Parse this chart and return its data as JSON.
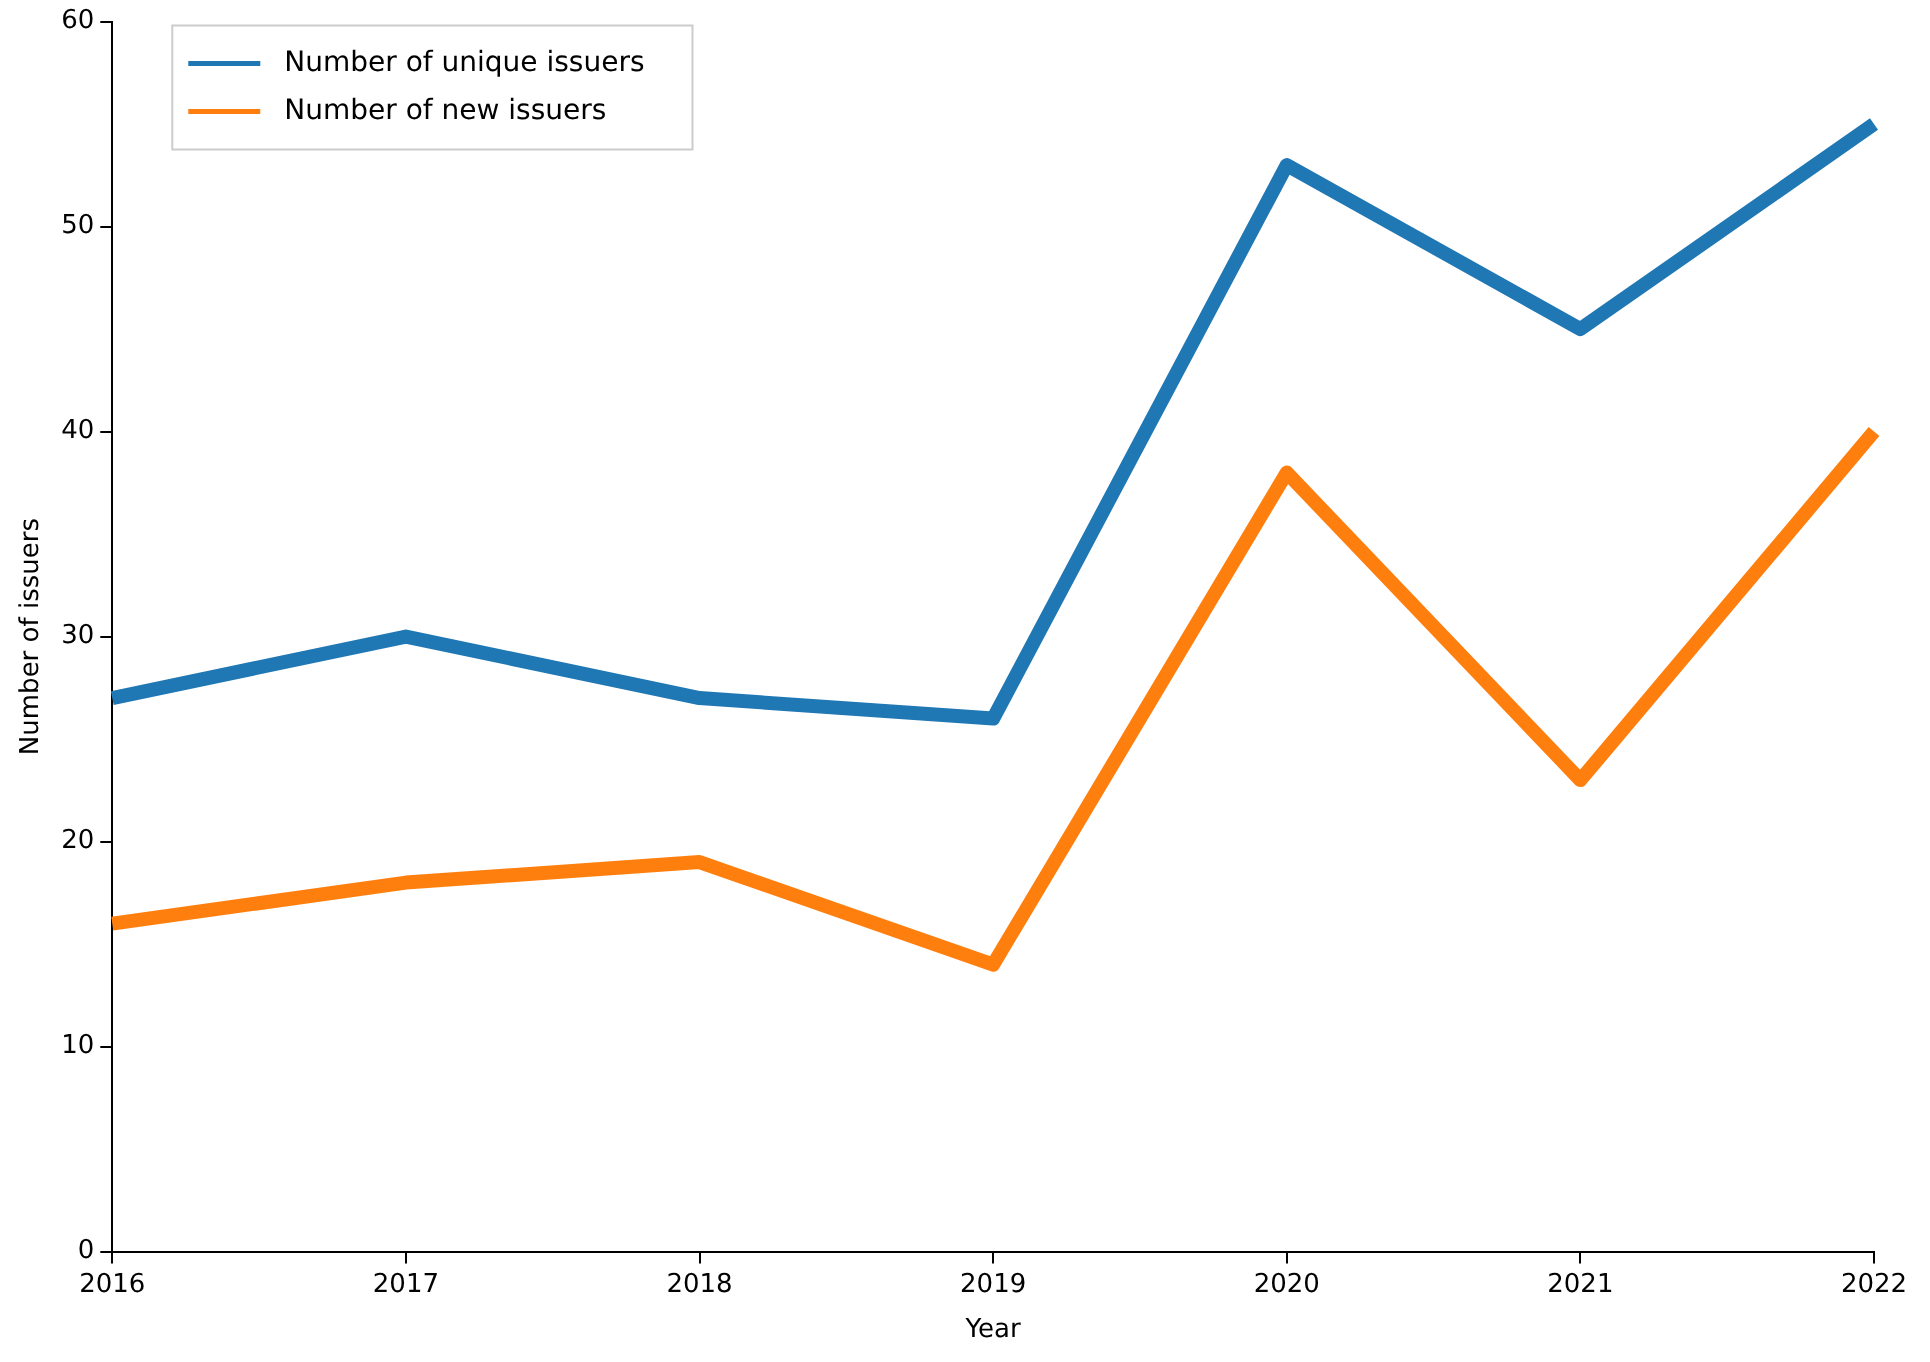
{
  "chart_data": {
    "type": "line",
    "xlabel": "Year",
    "ylabel": "Number of issuers",
    "categories": [
      "2016",
      "2017",
      "2018",
      "2019",
      "2020",
      "2021",
      "2022"
    ],
    "series": [
      {
        "name": "Number of unique issuers",
        "color": "#1f77b4",
        "values": [
          27,
          30,
          27,
          26,
          53,
          45,
          55
        ]
      },
      {
        "name": "Number of new issuers",
        "color": "#ff7f0e",
        "values": [
          16,
          18,
          19,
          14,
          38,
          23,
          40
        ]
      }
    ],
    "ylim": [
      0,
      60
    ],
    "yticks": [
      0,
      10,
      20,
      30,
      40,
      50,
      60
    ],
    "grid": false,
    "legend": "top left",
    "marker": "none",
    "line_style": "solid"
  }
}
